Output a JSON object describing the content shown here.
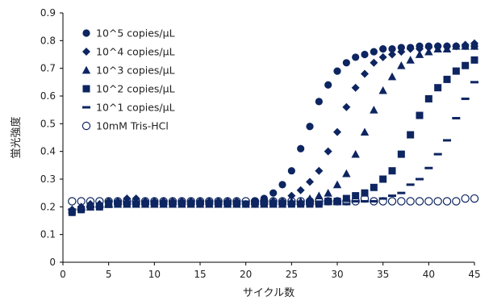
{
  "chart_data": {
    "type": "scatter",
    "title": "",
    "xlabel": "サイクル数",
    "ylabel": "蛍光強度",
    "xlim": [
      0,
      45
    ],
    "ylim": [
      0,
      0.9
    ],
    "x_ticks": [
      "0",
      "5",
      "10",
      "15",
      "20",
      "25",
      "30",
      "35",
      "40",
      "45"
    ],
    "y_ticks": [
      "0",
      "0.1",
      "0.2",
      "0.3",
      "0.4",
      "0.5",
      "0.6",
      "0.7",
      "0.8",
      "0.9"
    ],
    "grid": false,
    "legend_position": "top-left",
    "colors": {
      "series": "#0d2560",
      "open_marker_stroke": "#0d2560",
      "open_marker_fill": "#ffffff",
      "axis": "#000000"
    },
    "x": [
      1,
      2,
      3,
      4,
      5,
      6,
      7,
      8,
      9,
      10,
      11,
      12,
      13,
      14,
      15,
      16,
      17,
      18,
      19,
      20,
      21,
      22,
      23,
      24,
      25,
      26,
      27,
      28,
      29,
      30,
      31,
      32,
      33,
      34,
      35,
      36,
      37,
      38,
      39,
      40,
      41,
      42,
      43,
      44,
      45
    ],
    "series": [
      {
        "name": "10^5 copies/μL",
        "marker": "circle",
        "values": [
          0.18,
          0.19,
          0.2,
          0.2,
          0.21,
          0.21,
          0.21,
          0.21,
          0.21,
          0.21,
          0.21,
          0.21,
          0.21,
          0.21,
          0.21,
          0.21,
          0.21,
          0.21,
          0.21,
          0.21,
          0.22,
          0.23,
          0.25,
          0.28,
          0.33,
          0.41,
          0.49,
          0.58,
          0.64,
          0.69,
          0.72,
          0.74,
          0.75,
          0.76,
          0.77,
          0.77,
          0.775,
          0.775,
          0.78,
          0.78,
          0.78,
          0.78,
          0.78,
          0.78,
          0.78
        ]
      },
      {
        "name": "10^4 copies/μL",
        "marker": "diamond",
        "values": [
          0.19,
          0.2,
          0.21,
          0.21,
          0.22,
          0.22,
          0.23,
          0.23,
          0.22,
          0.22,
          0.22,
          0.22,
          0.22,
          0.22,
          0.22,
          0.22,
          0.22,
          0.22,
          0.22,
          0.21,
          0.21,
          0.22,
          0.22,
          0.22,
          0.24,
          0.26,
          0.29,
          0.33,
          0.4,
          0.47,
          0.56,
          0.63,
          0.68,
          0.72,
          0.74,
          0.75,
          0.76,
          0.77,
          0.77,
          0.775,
          0.78,
          0.78,
          0.78,
          0.785,
          0.79
        ]
      },
      {
        "name": "10^3 copies/μL",
        "marker": "triangle",
        "values": [
          0.19,
          0.2,
          0.2,
          0.21,
          0.21,
          0.21,
          0.21,
          0.21,
          0.21,
          0.21,
          0.21,
          0.21,
          0.21,
          0.21,
          0.21,
          0.21,
          0.21,
          0.21,
          0.21,
          0.21,
          0.21,
          0.21,
          0.21,
          0.21,
          0.22,
          0.22,
          0.23,
          0.24,
          0.25,
          0.28,
          0.32,
          0.39,
          0.47,
          0.55,
          0.62,
          0.67,
          0.71,
          0.73,
          0.75,
          0.76,
          0.77,
          0.77,
          0.78,
          0.78,
          0.78
        ]
      },
      {
        "name": "10^2 copies/μL",
        "marker": "square",
        "values": [
          0.18,
          0.19,
          0.2,
          0.2,
          0.21,
          0.21,
          0.21,
          0.21,
          0.21,
          0.21,
          0.21,
          0.21,
          0.21,
          0.21,
          0.21,
          0.21,
          0.21,
          0.21,
          0.21,
          0.21,
          0.21,
          0.21,
          0.21,
          0.21,
          0.21,
          0.21,
          0.21,
          0.21,
          0.22,
          0.22,
          0.23,
          0.24,
          0.25,
          0.27,
          0.3,
          0.33,
          0.39,
          0.46,
          0.53,
          0.59,
          0.63,
          0.66,
          0.69,
          0.71,
          0.73
        ]
      },
      {
        "name": "10^1 copies/μL",
        "marker": "dash",
        "values": [
          0.19,
          0.19,
          0.2,
          0.2,
          0.2,
          0.21,
          0.21,
          0.21,
          0.21,
          0.21,
          0.21,
          0.21,
          0.21,
          0.21,
          0.21,
          0.21,
          0.21,
          0.21,
          0.21,
          0.21,
          0.21,
          0.21,
          0.21,
          0.21,
          0.21,
          0.21,
          0.21,
          0.21,
          0.21,
          0.21,
          0.21,
          0.22,
          0.22,
          0.22,
          0.23,
          0.24,
          0.25,
          0.28,
          0.3,
          0.34,
          0.39,
          0.44,
          0.52,
          0.59,
          0.65
        ]
      },
      {
        "name": "10mM Tris-HCl",
        "marker": "open-circle",
        "values": [
          0.22,
          0.22,
          0.22,
          0.22,
          0.22,
          0.22,
          0.22,
          0.22,
          0.22,
          0.22,
          0.22,
          0.22,
          0.22,
          0.22,
          0.22,
          0.22,
          0.22,
          0.22,
          0.22,
          0.22,
          0.22,
          0.22,
          0.22,
          0.22,
          0.22,
          0.22,
          0.22,
          0.22,
          0.22,
          0.22,
          0.22,
          0.22,
          0.23,
          0.22,
          0.22,
          0.22,
          0.22,
          0.22,
          0.22,
          0.22,
          0.22,
          0.22,
          0.22,
          0.23,
          0.23
        ]
      }
    ],
    "legend": [
      {
        "label": "10^5 copies/μL",
        "marker": "circle"
      },
      {
        "label": "10^4 copies/μL",
        "marker": "diamond"
      },
      {
        "label": "10^3 copies/μL",
        "marker": "triangle"
      },
      {
        "label": "10^2 copies/μL",
        "marker": "square"
      },
      {
        "label": "10^1 copies/μL",
        "marker": "dash"
      },
      {
        "label": "10mM Tris-HCl",
        "marker": "open-circle"
      }
    ]
  }
}
